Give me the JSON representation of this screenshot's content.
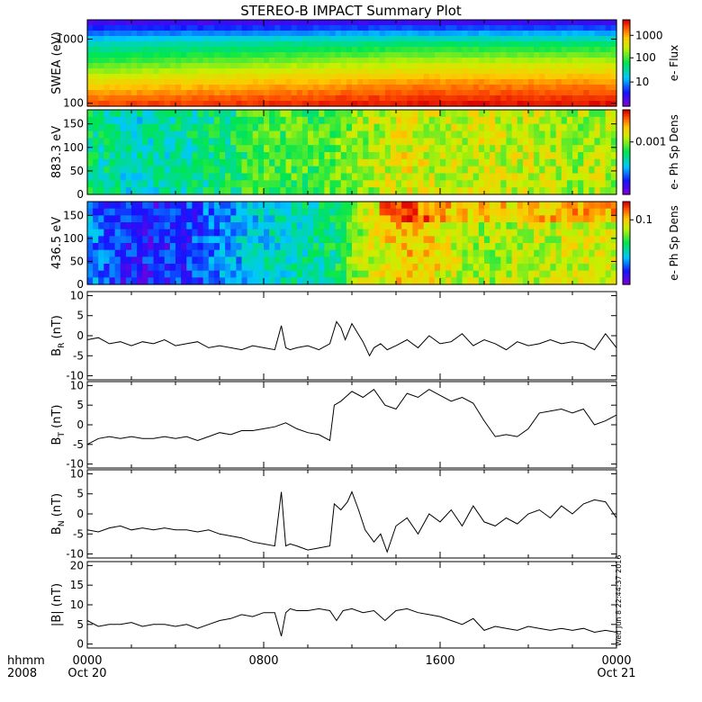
{
  "figure": {
    "title": "STEREO-B IMPACT Summary Plot",
    "timestamp": "Wed Jun 8 22:44:37 2016",
    "xaxis": {
      "row1_label": "hhmm",
      "row2_label": "2008",
      "ticks": [
        "0000",
        "0800",
        "1600",
        "0000"
      ],
      "dates": [
        "Oct 20",
        "",
        "",
        "Oct 21"
      ],
      "range_hours": [
        0,
        24
      ]
    }
  },
  "chart_data": [
    {
      "type": "heatmap",
      "ylabel": "SWEA (eV)",
      "ylim": [
        90,
        2000
      ],
      "ylog": true,
      "yticks": [
        "1000",
        "100"
      ],
      "ytick_values": [
        1000,
        100
      ],
      "colorbar_label": "e- Flux",
      "colorbar_ticks": [
        "1000",
        "100",
        "10"
      ],
      "colorbar_tick_fractions": [
        0.82,
        0.56,
        0.28
      ],
      "description_bands_eV_low_to_high": [
        100,
        200,
        400,
        800,
        1500
      ],
      "band_color_levels_t0": [
        0.92,
        0.76,
        0.55,
        0.38,
        0.08
      ],
      "band_color_levels_t24": [
        0.98,
        0.86,
        0.68,
        0.46,
        0.1
      ]
    },
    {
      "type": "heatmap",
      "ylabel": "883.3 eV",
      "ylim": [
        0,
        180
      ],
      "yticks": [
        "150",
        "100",
        "50",
        "0"
      ],
      "ytick_values": [
        150,
        100,
        50,
        0
      ],
      "colorbar_label": "e- Ph Sp Dens",
      "colorbar_ticks": [
        "0.001"
      ],
      "colorbar_tick_fractions": [
        0.62
      ],
      "level_by_hour": [
        0.45,
        0.42,
        0.38,
        0.4,
        0.42,
        0.44,
        0.46,
        0.52,
        0.55,
        0.56,
        0.55,
        0.58,
        0.62,
        0.66,
        0.72,
        0.7,
        0.68,
        0.68,
        0.7,
        0.68,
        0.7,
        0.66,
        0.64,
        0.66,
        0.64
      ]
    },
    {
      "type": "heatmap",
      "ylabel": "436.5 eV",
      "ylim": [
        0,
        180
      ],
      "yticks": [
        "150",
        "100",
        "50",
        "0"
      ],
      "ytick_values": [
        150,
        100,
        50,
        0
      ],
      "colorbar_label": "e- Ph Sp Dens",
      "colorbar_ticks": [
        "0.1"
      ],
      "colorbar_tick_fractions": [
        0.78
      ],
      "level_by_hour": [
        0.26,
        0.18,
        0.14,
        0.14,
        0.16,
        0.2,
        0.26,
        0.32,
        0.36,
        0.4,
        0.42,
        0.46,
        0.62,
        0.72,
        0.78,
        0.78,
        0.72,
        0.66,
        0.64,
        0.66,
        0.68,
        0.68,
        0.7,
        0.7,
        0.7
      ]
    },
    {
      "type": "line",
      "ylabel": "B_R (nT)",
      "ylabel_main": "B",
      "ylabel_sub": "R",
      "ylabel_unit": " (nT)",
      "ylim": [
        -11,
        11
      ],
      "yticks": [
        "10",
        "5",
        "0",
        "-5",
        "-10"
      ],
      "ytick_values": [
        10,
        5,
        0,
        -5,
        -10
      ],
      "x": [
        0,
        0.5,
        1,
        1.5,
        2,
        2.5,
        3,
        3.5,
        4,
        4.5,
        5,
        5.5,
        6,
        6.5,
        7,
        7.5,
        8,
        8.5,
        8.8,
        9,
        9.2,
        9.5,
        10,
        10.5,
        11,
        11.3,
        11.5,
        11.7,
        12,
        12.5,
        12.8,
        13,
        13.3,
        13.6,
        14,
        14.5,
        15,
        15.5,
        16,
        16.5,
        17,
        17.5,
        18,
        18.5,
        19,
        19.5,
        20,
        20.5,
        21,
        21.5,
        22,
        22.5,
        23,
        23.5,
        24
      ],
      "values": [
        -1,
        -0.5,
        -2,
        -1.5,
        -2.5,
        -1.5,
        -2,
        -1,
        -2.5,
        -2,
        -1.5,
        -3,
        -2.5,
        -3,
        -3.5,
        -2.5,
        -3,
        -3.5,
        2.5,
        -3,
        -3.5,
        -3,
        -2.5,
        -3.5,
        -2,
        3.5,
        2,
        -1,
        3,
        -1.5,
        -5,
        -3,
        -2,
        -3.5,
        -2.5,
        -1,
        -3,
        0,
        -2,
        -1.5,
        0.5,
        -2.5,
        -1,
        -2,
        -3.5,
        -1.5,
        -2.5,
        -2,
        -1,
        -2,
        -1.5,
        -2,
        -3.5,
        0.5,
        -3
      ]
    },
    {
      "type": "line",
      "ylabel": "B_T (nT)",
      "ylabel_main": "B",
      "ylabel_sub": "T",
      "ylabel_unit": " (nT)",
      "ylim": [
        -11,
        11
      ],
      "yticks": [
        "10",
        "5",
        "0",
        "-5",
        "-10"
      ],
      "ytick_values": [
        10,
        5,
        0,
        -5,
        -10
      ],
      "x": [
        0,
        0.5,
        1,
        1.5,
        2,
        2.5,
        3,
        3.5,
        4,
        4.5,
        5,
        5.5,
        6,
        6.5,
        7,
        7.5,
        8,
        8.5,
        9,
        9.5,
        10,
        10.5,
        11,
        11.2,
        11.5,
        12,
        12.5,
        13,
        13.5,
        14,
        14.5,
        15,
        15.5,
        16,
        16.5,
        17,
        17.5,
        18,
        18.5,
        19,
        19.5,
        20,
        20.5,
        21,
        21.5,
        22,
        22.5,
        23,
        23.5,
        24
      ],
      "values": [
        -5,
        -3.5,
        -3,
        -3.5,
        -3,
        -3.5,
        -3.5,
        -3,
        -3.5,
        -3,
        -4,
        -3,
        -2,
        -2.5,
        -1.5,
        -1.5,
        -1,
        -0.5,
        0.5,
        -1,
        -2,
        -2.5,
        -4,
        5,
        6,
        8.5,
        7,
        9,
        5,
        4,
        8,
        7,
        9,
        7.5,
        6,
        7,
        5.5,
        1,
        -3,
        -2.5,
        -3,
        -1,
        3,
        3.5,
        4,
        3,
        4,
        0,
        1,
        2.5
      ]
    },
    {
      "type": "line",
      "ylabel": "B_N (nT)",
      "ylabel_main": "B",
      "ylabel_sub": "N",
      "ylabel_unit": " (nT)",
      "ylim": [
        -11,
        11
      ],
      "yticks": [
        "10",
        "5",
        "0",
        "-5",
        "-10"
      ],
      "ytick_values": [
        10,
        5,
        0,
        -5,
        -10
      ],
      "x": [
        0,
        0.5,
        1,
        1.5,
        2,
        2.5,
        3,
        3.5,
        4,
        4.5,
        5,
        5.5,
        6,
        6.5,
        7,
        7.5,
        8,
        8.5,
        8.8,
        9,
        9.2,
        9.5,
        10,
        10.5,
        11,
        11.2,
        11.5,
        11.8,
        12,
        12.3,
        12.6,
        13,
        13.3,
        13.6,
        14,
        14.5,
        15,
        15.5,
        16,
        16.5,
        17,
        17.5,
        18,
        18.5,
        19,
        19.5,
        20,
        20.5,
        21,
        21.5,
        22,
        22.5,
        23,
        23.5,
        24
      ],
      "values": [
        -4,
        -4.5,
        -3.5,
        -3,
        -4,
        -3.5,
        -4,
        -3.5,
        -4,
        -4,
        -4.5,
        -4,
        -5,
        -5.5,
        -6,
        -7,
        -7.5,
        -8,
        5.5,
        -8,
        -7.5,
        -8,
        -9,
        -8.5,
        -8,
        2.5,
        1,
        3,
        5.5,
        1,
        -4,
        -7,
        -5,
        -9.5,
        -3,
        -1,
        -5,
        0,
        -2,
        1,
        -3,
        2,
        -2,
        -3,
        -1,
        -2.5,
        0,
        1,
        -1,
        2,
        0,
        2.5,
        3.5,
        3,
        -1
      ]
    },
    {
      "type": "line",
      "ylabel": "|B| (nT)",
      "ylim": [
        -1,
        21
      ],
      "yticks": [
        "20",
        "15",
        "10",
        "5",
        "0"
      ],
      "ytick_values": [
        20,
        15,
        10,
        5,
        0
      ],
      "x": [
        0,
        0.5,
        1,
        1.5,
        2,
        2.5,
        3,
        3.5,
        4,
        4.5,
        5,
        5.5,
        6,
        6.5,
        7,
        7.5,
        8,
        8.5,
        8.8,
        9,
        9.2,
        9.5,
        10,
        10.5,
        11,
        11.3,
        11.6,
        12,
        12.5,
        13,
        13.5,
        14,
        14.5,
        15,
        15.5,
        16,
        16.5,
        17,
        17.5,
        18,
        18.5,
        19,
        19.5,
        20,
        20.5,
        21,
        21.5,
        22,
        22.5,
        23,
        23.5,
        24
      ],
      "values": [
        6,
        4.5,
        5,
        5,
        5.5,
        4.5,
        5,
        5,
        4.5,
        5,
        4,
        5,
        6,
        6.5,
        7.5,
        7,
        8,
        8,
        2,
        8,
        9,
        8.5,
        8.5,
        9,
        8.5,
        6,
        8.5,
        9,
        8,
        8.5,
        6,
        8.5,
        9,
        8,
        7.5,
        7,
        6,
        5,
        6.5,
        3.5,
        4.5,
        4,
        3.5,
        4.5,
        4,
        3.5,
        4,
        3.5,
        4,
        3,
        3.5,
        3
      ]
    }
  ]
}
